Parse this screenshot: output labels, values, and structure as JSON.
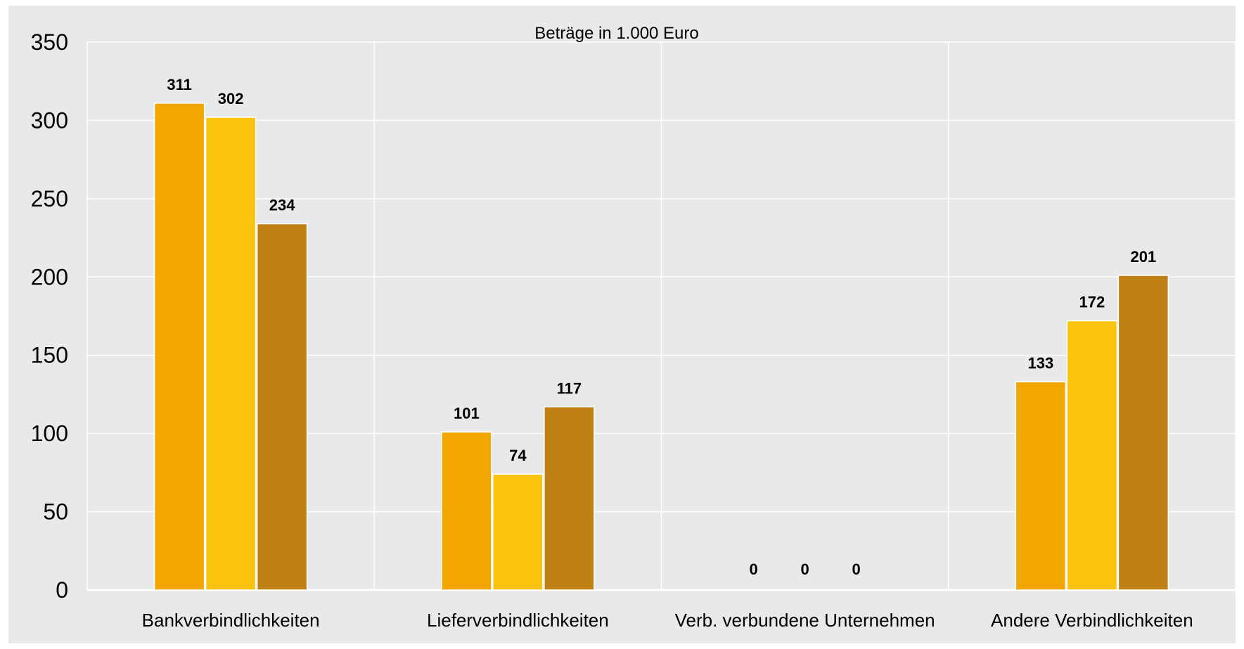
{
  "chart_data": {
    "type": "bar",
    "subtitle": "Beträge in 1.000 Euro",
    "categories": [
      "Bankverbindlichkeiten",
      "Lieferverbindlichkeiten",
      "Verb. verbundene Unternehmen",
      "Andere Verbindlichkeiten"
    ],
    "series": [
      {
        "color": "#F2A600",
        "values": [
          311,
          101,
          0,
          133
        ]
      },
      {
        "color": "#F9C30E",
        "values": [
          302,
          74,
          0,
          172
        ]
      },
      {
        "color": "#BF8116",
        "values": [
          234,
          117,
          0,
          201
        ]
      }
    ],
    "ylim": [
      0,
      350
    ],
    "yticks": [
      0,
      50,
      100,
      150,
      200,
      250,
      300,
      350
    ],
    "grid": true,
    "legend": "none",
    "colors": {
      "plot_background": "#E8E9EB",
      "gridline": "#FFFFFF"
    }
  }
}
